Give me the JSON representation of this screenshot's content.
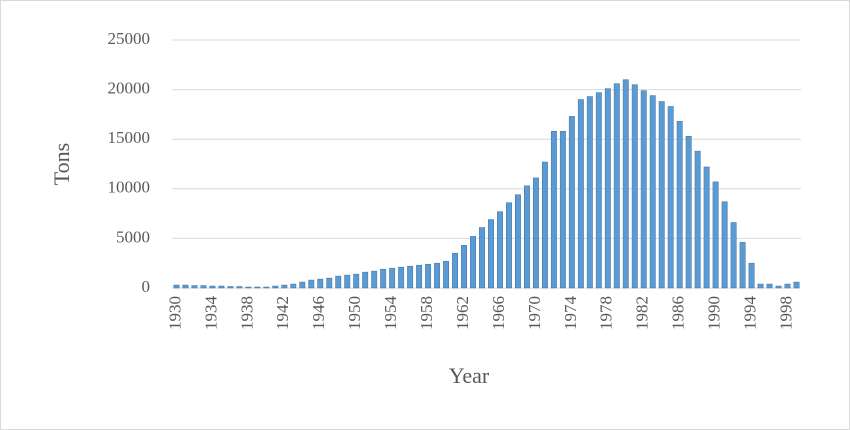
{
  "chart_data": {
    "type": "bar",
    "x_label": "Year",
    "y_label": "Tons",
    "categories": [
      "1930",
      null,
      null,
      null,
      "1934",
      null,
      null,
      null,
      "1938",
      null,
      null,
      null,
      "1942",
      null,
      null,
      null,
      "1946",
      null,
      null,
      null,
      "1950",
      null,
      null,
      null,
      "1954",
      null,
      null,
      null,
      "1958",
      null,
      null,
      null,
      "1962",
      null,
      null,
      null,
      "1966",
      null,
      null,
      null,
      "1970",
      null,
      null,
      null,
      "1974",
      null,
      null,
      null,
      "1978",
      null,
      null,
      null,
      "1982",
      null,
      null,
      null,
      "1986",
      null,
      null,
      null,
      "1990",
      null,
      null,
      null,
      "1994",
      null,
      null,
      null,
      "1998",
      null
    ],
    "values": [
      300,
      300,
      250,
      250,
      200,
      200,
      150,
      150,
      100,
      100,
      100,
      200,
      300,
      400,
      600,
      800,
      900,
      1000,
      1200,
      1300,
      1400,
      1600,
      1700,
      1900,
      2000,
      2100,
      2200,
      2300,
      2400,
      2500,
      2700,
      3500,
      4300,
      5200,
      6100,
      6900,
      7700,
      8600,
      9400,
      10300,
      11100,
      12700,
      15800,
      15800,
      17300,
      19000,
      19300,
      19700,
      20100,
      20600,
      21000,
      20500,
      19900,
      19400,
      18800,
      18300,
      16800,
      15300,
      13800,
      12200,
      10700,
      8700,
      6600,
      4600,
      2500,
      400,
      400,
      200,
      400,
      600
    ],
    "color": "#5b9bd5",
    "ylim": [
      0,
      25000
    ],
    "yticks": [
      0,
      5000,
      10000,
      15000,
      20000,
      25000
    ],
    "grid": true
  }
}
